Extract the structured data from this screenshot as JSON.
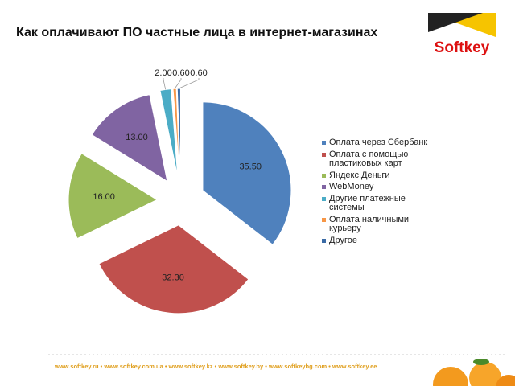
{
  "chart_data": {
    "type": "pie",
    "title": "Как оплачивают ПО частные лица в интернет-магазинах",
    "categories": [
      "Оплата через Сбербанк",
      "Оплата с помощью пластиковых карт",
      "Яндекс.Деньги",
      "WebMoney",
      "Другие платежные системы",
      "Оплата наличными курьеру",
      "Другое"
    ],
    "values": [
      35.5,
      32.3,
      16,
      13,
      2,
      0.6,
      0.6
    ],
    "value_labels": [
      "35.50",
      "32.30",
      "16.00",
      "13.00",
      "2.00",
      "0.60",
      "0.60"
    ],
    "colors": [
      "#4f81bd",
      "#c0504d",
      "#9bbb59",
      "#8064a2",
      "#4bacc6",
      "#f79646",
      "#3a6aa5"
    ],
    "legend": "right",
    "exploded": true
  },
  "logo": "Softkey",
  "footer": "www.softkey.ru • www.softkey.com.ua • www.softkey.kz • www.softkey.by • www.softkeybg.com • www.softkey.ee"
}
